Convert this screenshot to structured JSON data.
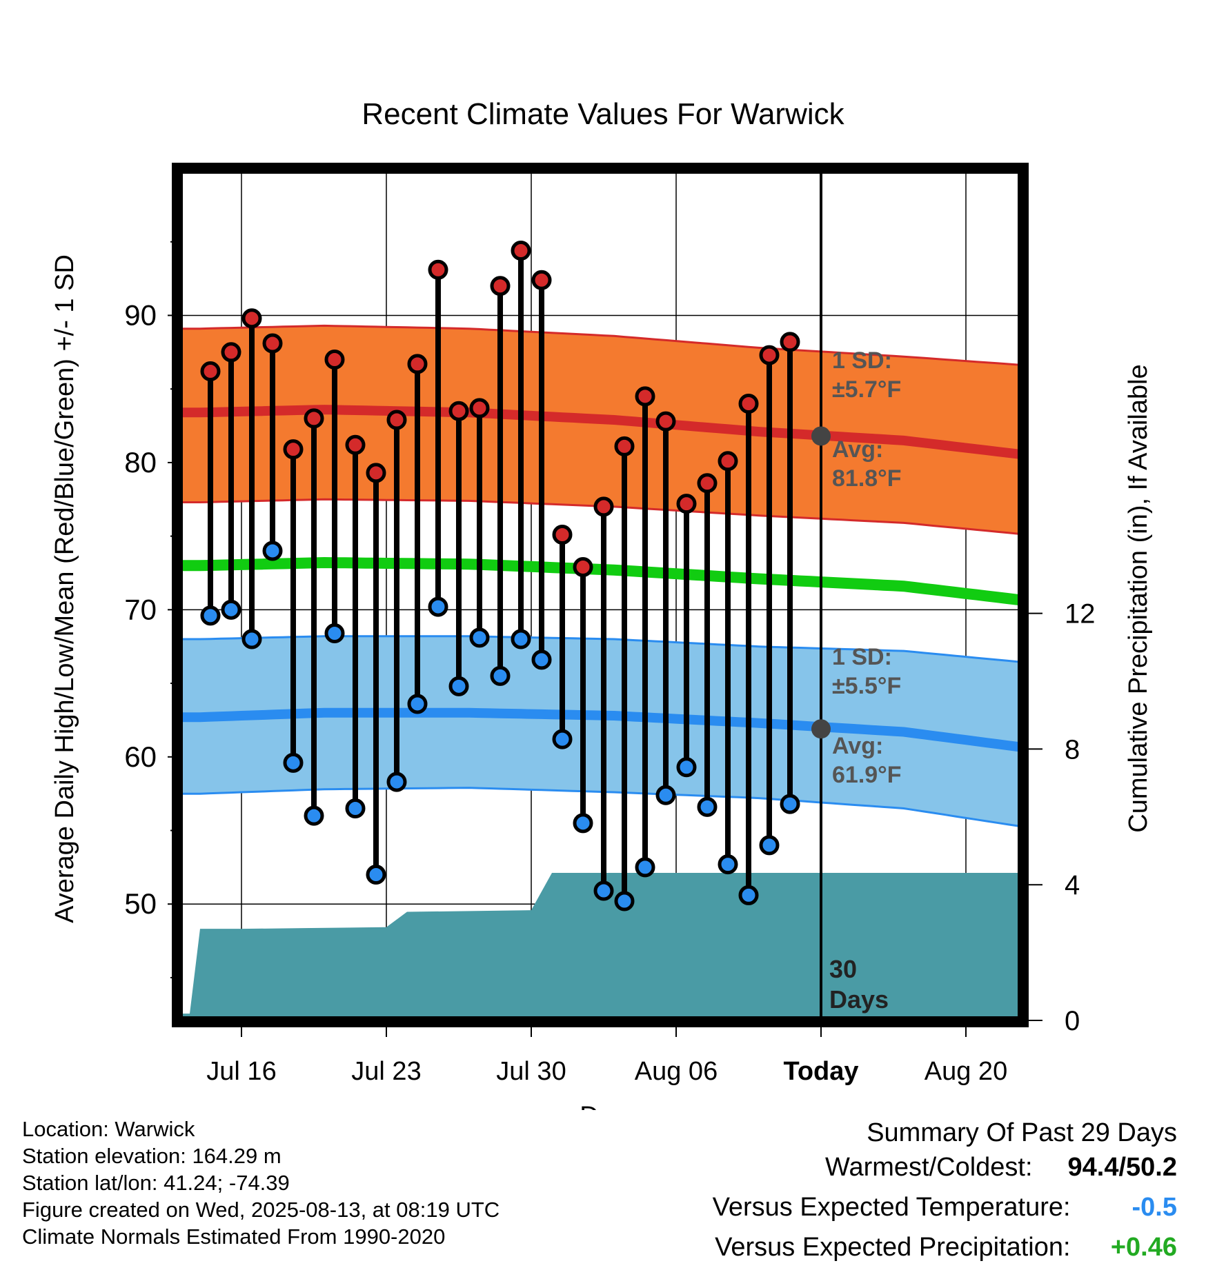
{
  "chart_data": {
    "type": "line",
    "title": "Recent Climate Values For Warwick",
    "xlabel": "Day",
    "ylabel_left": "Average Daily High/Low/Mean (Red/Blue/Green) +/- 1 SD",
    "ylabel_right": "Cumulative Precipitation (in), If Available",
    "ylim_left": [
      42,
      100
    ],
    "ylim_right": [
      0,
      24
    ],
    "left_ticks": [
      50,
      60,
      70,
      80,
      90
    ],
    "right_ticks": [
      0,
      4,
      8,
      12
    ],
    "x_start": "Jul 13",
    "x_end": "Aug 23",
    "x_tick_labels": [
      {
        "label": "Jul 16",
        "day": 3
      },
      {
        "label": "Jul 23",
        "day": 10
      },
      {
        "label": "Jul 30",
        "day": 17
      },
      {
        "label": "Aug 06",
        "day": 24
      },
      {
        "label": "Today",
        "day": 31
      },
      {
        "label": "Aug 20",
        "day": 38
      }
    ],
    "today_label": "Today",
    "window_label_line1": "30",
    "window_label_line2": "Days",
    "high_sd_line1": "1 SD:",
    "high_sd_line2": "±5.7°F",
    "high_avg_line1": "Avg:",
    "high_avg_line2": "81.8°F",
    "low_sd_line1": "1 SD:",
    "low_sd_line2": "±5.5°F",
    "low_avg_line1": "Avg:",
    "low_avg_line2": "61.9°F",
    "today_avg_high": 81.8,
    "today_avg_low": 61.9,
    "daily_highs": [
      86.2,
      87.5,
      89.8,
      88.1,
      80.9,
      83.0,
      87.0,
      81.2,
      79.3,
      82.9,
      86.7,
      93.1,
      83.5,
      83.7,
      92.0,
      94.4,
      92.4,
      75.1,
      72.9,
      77.0,
      81.1,
      84.5,
      82.8,
      77.2,
      78.6,
      80.1,
      84.0,
      87.3,
      88.2
    ],
    "daily_lows": [
      69.6,
      70.0,
      68.0,
      74.0,
      59.6,
      56.0,
      68.4,
      56.5,
      52.0,
      58.3,
      63.6,
      70.2,
      64.8,
      68.1,
      65.5,
      68.0,
      66.6,
      61.2,
      55.5,
      50.9,
      50.2,
      52.5,
      57.4,
      59.3,
      56.6,
      52.7,
      50.6,
      54.0,
      56.8
    ],
    "normals": {
      "x_days": [
        1,
        7,
        14,
        21,
        28,
        35,
        41
      ],
      "high_avg": [
        83.4,
        83.6,
        83.4,
        82.9,
        82.1,
        81.5,
        80.5
      ],
      "high_sd_upper": [
        89.1,
        89.3,
        89.1,
        88.6,
        87.8,
        87.2,
        86.6
      ],
      "high_sd_lower": [
        77.3,
        77.5,
        77.4,
        77.0,
        76.4,
        75.9,
        75.1
      ],
      "mean_avg": [
        73.0,
        73.2,
        73.1,
        72.7,
        72.1,
        71.6,
        70.6
      ],
      "low_avg": [
        62.7,
        63.0,
        63.0,
        62.8,
        62.3,
        61.7,
        60.6
      ],
      "low_sd_upper": [
        68.0,
        68.2,
        68.2,
        68.0,
        67.5,
        67.2,
        66.4
      ],
      "low_sd_lower": [
        57.5,
        57.8,
        57.9,
        57.6,
        57.2,
        56.5,
        55.2
      ]
    },
    "cumulative_precip": {
      "days": [
        0.5,
        1,
        3,
        6,
        10,
        11,
        17,
        18,
        41
      ],
      "values": [
        0.2,
        2.7,
        2.7,
        2.72,
        2.75,
        3.2,
        3.25,
        4.35,
        4.35
      ]
    },
    "colors": {
      "high_band": "#f47a2f",
      "high_avg": "#d42a2a",
      "low_band": "#86c4ea",
      "low_avg": "#2a8cf0",
      "mean": "#11cc11",
      "precip": "#4a9ba5",
      "high_dot": "#d42a2a",
      "low_dot": "#2a8cf0",
      "annotation": "#555555"
    }
  },
  "footer": {
    "location": "Location: Warwick",
    "elevation": "Station elevation: 164.29 m",
    "latlon": "Station lat/lon: 41.24; -74.39",
    "created": "Figure created on Wed, 2025-08-13, at 08:19 UTC",
    "normals": "Climate Normals Estimated From 1990-2020"
  },
  "summary": {
    "title": "Summary Of Past 29 Days",
    "warmest_label": "Warmest/Coldest:",
    "warmest_value": "94.4/50.2",
    "temp_label": "Versus Expected Temperature:",
    "temp_value": "-0.5",
    "temp_color": "#2a8cf0",
    "precip_label": "Versus Expected Precipitation:",
    "precip_value": "+0.46",
    "precip_color": "#22aa22"
  }
}
